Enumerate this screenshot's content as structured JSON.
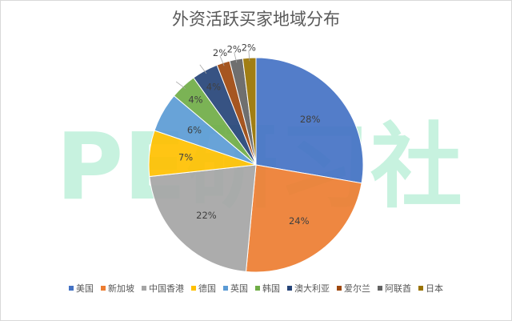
{
  "chart_data": {
    "type": "pie",
    "title": "外资活跃买家地域分布",
    "categories": [
      "美国",
      "新加坡",
      "中国香港",
      "德国",
      "英国",
      "韩国",
      "澳大利亚",
      "爱尔兰",
      "阿联酋",
      "日本"
    ],
    "values": [
      28,
      24,
      22,
      7,
      6,
      4,
      4,
      2,
      2,
      2
    ],
    "labels": [
      "28%",
      "24%",
      "22%",
      "7%",
      "6%",
      "4%",
      "4%",
      "2%",
      "2%",
      "2%"
    ],
    "colors": [
      "#4472C4",
      "#ED7D31",
      "#A5A5A5",
      "#FFC000",
      "#5B9BD5",
      "#70AD47",
      "#264478",
      "#9E480E",
      "#636363",
      "#997300"
    ],
    "legend_position": "bottom",
    "start_angle": "12 o'clock, clockwise"
  },
  "watermark": {
    "text": "PE研习社",
    "color": "#c7f2df"
  }
}
